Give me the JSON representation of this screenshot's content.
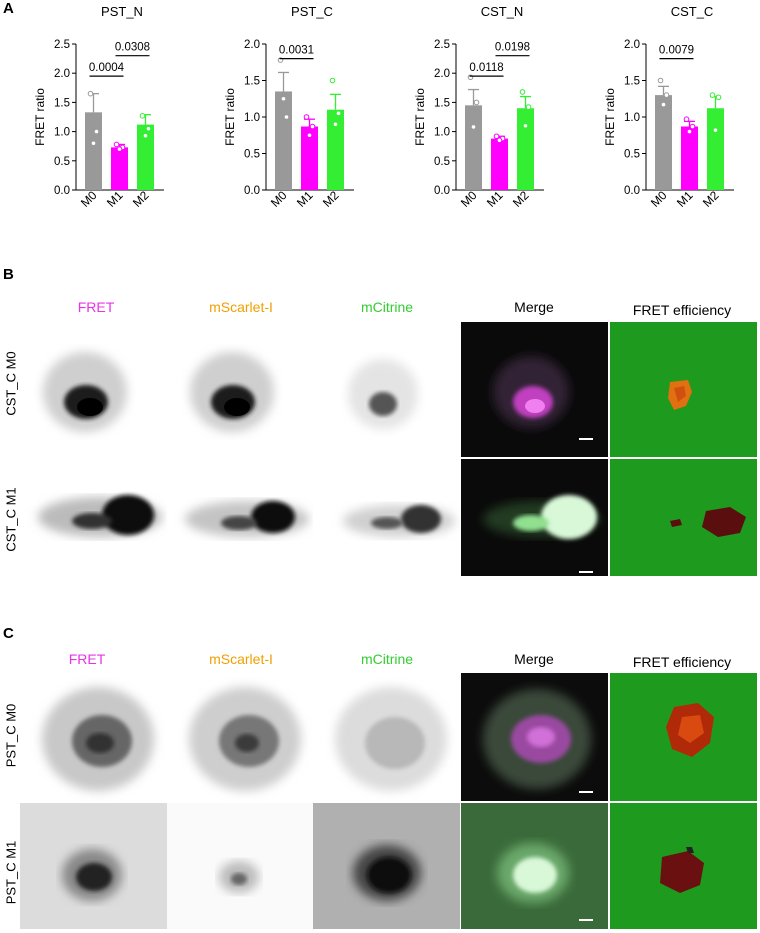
{
  "panels": {
    "a": "A",
    "b": "B",
    "c": "C"
  },
  "charts": [
    {
      "title": "PST_N",
      "ylabel": "FRET ratio",
      "ymax": 2.5,
      "ticks": [
        "0.0",
        "0.5",
        "1.0",
        "1.5",
        "2.0",
        "2.5"
      ],
      "pvals": [
        {
          "label": "0.0004"
        },
        {
          "label": "0.0308"
        }
      ]
    },
    {
      "title": "PST_C",
      "ylabel": "FRET ratio",
      "ymax": 2.0,
      "ticks": [
        "0.0",
        "0.5",
        "1.0",
        "1.5",
        "2.0"
      ],
      "pvals": [
        {
          "label": "0.0031"
        }
      ]
    },
    {
      "title": "CST_N",
      "ylabel": "FRET ratio",
      "ymax": 2.5,
      "ticks": [
        "0.0",
        "0.5",
        "1.0",
        "1.5",
        "2.0",
        "2.5"
      ],
      "pvals": [
        {
          "label": "0.0118"
        },
        {
          "label": "0.0198"
        }
      ]
    },
    {
      "title": "CST_C",
      "ylabel": "FRET ratio",
      "ymax": 2.0,
      "ticks": [
        "0.0",
        "0.5",
        "1.0",
        "1.5",
        "2.0"
      ],
      "pvals": [
        {
          "label": "0.0079"
        }
      ]
    }
  ],
  "chart_data": [
    {
      "type": "bar",
      "title": "PST_N",
      "ylabel": "FRET ratio",
      "ylim": [
        0,
        2.5
      ],
      "categories": [
        "M0",
        "M1",
        "M2"
      ],
      "values": [
        1.33,
        0.73,
        1.12
      ],
      "errors": [
        0.32,
        0.05,
        0.17
      ],
      "points": [
        [
          1.65,
          1.0,
          0.8
        ],
        [
          0.78,
          0.73,
          0.7
        ],
        [
          1.27,
          1.05,
          0.93
        ]
      ],
      "colors": [
        "#999999",
        "#ff00ff",
        "#33ee33"
      ],
      "comparisons": [
        {
          "a": 0,
          "b": 1,
          "p": "0.0004"
        },
        {
          "a": 1,
          "b": 2,
          "p": "0.0308"
        }
      ]
    },
    {
      "type": "bar",
      "title": "PST_C",
      "ylabel": "FRET ratio",
      "ylim": [
        0,
        2.0
      ],
      "categories": [
        "M0",
        "M1",
        "M2"
      ],
      "values": [
        1.35,
        0.87,
        1.1
      ],
      "errors": [
        0.26,
        0.1,
        0.21
      ],
      "points": [
        [
          1.78,
          1.0,
          1.25
        ],
        [
          1.0,
          0.87,
          0.75
        ],
        [
          1.5,
          1.05,
          0.9
        ]
      ],
      "colors": [
        "#999999",
        "#ff00ff",
        "#33ee33"
      ],
      "comparisons": [
        {
          "a": 0,
          "b": 1,
          "p": "0.0031"
        }
      ]
    },
    {
      "type": "bar",
      "title": "CST_N",
      "ylabel": "FRET ratio",
      "ylim": [
        0,
        2.5
      ],
      "categories": [
        "M0",
        "M1",
        "M2"
      ],
      "values": [
        1.45,
        0.88,
        1.4
      ],
      "errors": [
        0.27,
        0.04,
        0.2
      ],
      "points": [
        [
          1.93,
          1.5,
          1.08
        ],
        [
          0.92,
          0.88,
          0.85
        ],
        [
          1.68,
          1.42,
          1.1
        ]
      ],
      "colors": [
        "#999999",
        "#ff00ff",
        "#33ee33"
      ],
      "comparisons": [
        {
          "a": 0,
          "b": 1,
          "p": "0.0118"
        },
        {
          "a": 1,
          "b": 2,
          "p": "0.0198"
        }
      ]
    },
    {
      "type": "bar",
      "title": "CST_C",
      "ylabel": "FRET ratio",
      "ylim": [
        0,
        2.0
      ],
      "categories": [
        "M0",
        "M1",
        "M2"
      ],
      "values": [
        1.3,
        0.87,
        1.12
      ],
      "errors": [
        0.12,
        0.07,
        0.16
      ],
      "points": [
        [
          1.5,
          1.3,
          1.17
        ],
        [
          0.97,
          0.87,
          0.8
        ],
        [
          1.3,
          1.27,
          0.82
        ]
      ],
      "colors": [
        "#999999",
        "#ff00ff",
        "#33ee33"
      ],
      "comparisons": [
        {
          "a": 0,
          "b": 1,
          "p": "0.0079"
        }
      ]
    }
  ],
  "micrograph_panels": [
    {
      "headers": [
        "FRET",
        "mScarlet-I",
        "mCitrine",
        "Merge",
        "FRET efficiency"
      ],
      "rows": [
        "CST_C M0",
        "CST_C M1"
      ]
    },
    {
      "headers": [
        "FRET",
        "mScarlet-I",
        "mCitrine",
        "Merge",
        "FRET efficiency"
      ],
      "rows": [
        "PST_C M0",
        "PST_C M1"
      ]
    }
  ],
  "colors": {
    "fret": "#e833e8",
    "mscarlet": "#f0a000",
    "mcitrine": "#33cc33",
    "grey": "#999999",
    "magenta": "#ff00ff",
    "green": "#33ee33",
    "eff_bg": "#1e9a1e"
  }
}
